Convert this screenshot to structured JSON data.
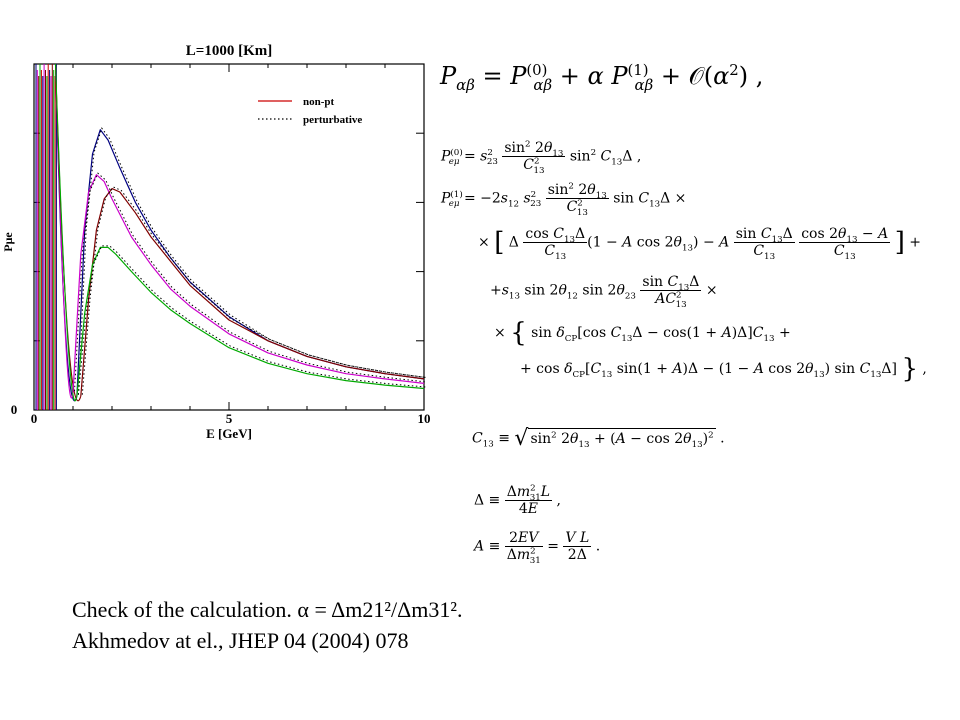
{
  "chart_data": {
    "type": "line",
    "title": "L=1000 [Km]",
    "xlabel": "E [GeV]",
    "ylabel": "Pμe",
    "xlim": [
      0,
      10
    ],
    "ylim": [
      0,
      0.1
    ],
    "x_ticks": [
      "0",
      "5",
      "10"
    ],
    "y_ticks": [
      "0"
    ],
    "legend": {
      "placement": "top-right",
      "entries": [
        {
          "label": "non-pt",
          "style": "solid",
          "color": "#cc0000"
        },
        {
          "label": "perturbative",
          "style": "dotted",
          "color": "#000000"
        }
      ]
    },
    "series": [
      {
        "color": "#000080",
        "x": [
          1.1,
          1.3,
          1.5,
          1.7,
          1.9,
          2.2,
          2.6,
          3.0,
          3.5,
          4.0,
          5.0,
          6.0,
          7.0,
          8.0,
          9.0,
          10.0
        ],
        "values": [
          0.004,
          0.052,
          0.074,
          0.081,
          0.078,
          0.07,
          0.06,
          0.052,
          0.044,
          0.037,
          0.027,
          0.02,
          0.0155,
          0.0125,
          0.0105,
          0.009
        ]
      },
      {
        "color": "#cc00cc",
        "x": [
          1.0,
          1.2,
          1.4,
          1.6,
          1.8,
          2.0,
          2.5,
          3.0,
          3.5,
          4.0,
          5.0,
          6.0,
          7.0,
          8.0,
          9.0,
          10.0
        ],
        "values": [
          0.005,
          0.045,
          0.063,
          0.068,
          0.066,
          0.061,
          0.05,
          0.042,
          0.035,
          0.03,
          0.022,
          0.0165,
          0.013,
          0.0105,
          0.009,
          0.0077
        ]
      },
      {
        "color": "#800000",
        "x": [
          1.2,
          1.4,
          1.6,
          1.8,
          2.0,
          2.2,
          2.6,
          3.0,
          3.5,
          4.0,
          5.0,
          6.0,
          7.0,
          8.0,
          9.0,
          10.0
        ],
        "values": [
          0.004,
          0.032,
          0.052,
          0.061,
          0.064,
          0.063,
          0.057,
          0.05,
          0.043,
          0.036,
          0.026,
          0.02,
          0.0155,
          0.0125,
          0.0105,
          0.009
        ]
      },
      {
        "color": "#00aa00",
        "x": [
          1.1,
          1.3,
          1.5,
          1.7,
          1.9,
          2.1,
          2.5,
          3.0,
          3.5,
          4.0,
          5.0,
          6.0,
          7.0,
          8.0,
          9.0,
          10.0
        ],
        "values": [
          0.004,
          0.028,
          0.042,
          0.047,
          0.047,
          0.045,
          0.04,
          0.034,
          0.029,
          0.025,
          0.018,
          0.0135,
          0.0105,
          0.0085,
          0.0072,
          0.0062
        ]
      }
    ]
  },
  "equations": {
    "main": "Pαβ = Pαβ(0) + α Pαβ(1) + O(α²) ,",
    "p0": "Peμ(0) = s23² (sin² 2θ13 / C13²) sin² C13Δ ,",
    "p1_line1": "Peμ(1) = −2s12 s23² (sin² 2θ13 / C13²) sin C13Δ ×",
    "p1_line2": "× [ Δ (cos C13Δ / C13)(1 − A cos 2θ13) − A (sin C13Δ / C13)((cos 2θ13 − A) / C13) ] +",
    "p1_line3": "+s13 sin 2θ12 sin 2θ23 (sin C13Δ / AC13²) ×",
    "p1_line4": "× { sin δCP [cos C13Δ − cos(1 + A)Δ] C13 +",
    "p1_line5": "+ cos δCP [C13 sin(1 + A)Δ − (1 − A cos 2θ13) sin C13Δ] } ,",
    "c13": "C13 ≡ √( sin² 2θ13 + (A − cos 2θ13)² ) .",
    "delta": "Δ ≡ Δm31² L / 4E ,",
    "a": "A ≡ 2EV / Δm31² = V L / 2Δ ."
  },
  "caption": {
    "line1": "Check of the calculation. α = Δm21²/Δm31².",
    "line2": "Akhmedov at el., JHEP 04 (2004) 078"
  }
}
